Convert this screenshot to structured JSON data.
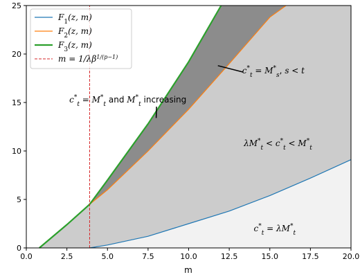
{
  "chart_data": {
    "type": "line",
    "xlabel": "m",
    "ylabel": "",
    "xlim": [
      0.0,
      20.0
    ],
    "ylim": [
      0,
      25
    ],
    "x_ticks": [
      "0.0",
      "2.5",
      "5.0",
      "7.5",
      "10.0",
      "12.5",
      "15.0",
      "17.5",
      "20.0"
    ],
    "y_ticks": [
      "0",
      "5",
      "10",
      "15",
      "20",
      "25"
    ],
    "grid": false,
    "legend_position": "top-left",
    "colors": {
      "F1": "#1f77b4",
      "F2": "#ff7f0e",
      "F3": "#2ca02c",
      "vline": "#d62728",
      "region_top": "#8c8c8c",
      "region_mid": "#cccccc",
      "region_low": "#f2f2f2"
    },
    "series": [
      {
        "name": "F₁(z, m)",
        "x": [
          3.9,
          5,
          7.5,
          10,
          12.5,
          15,
          17.5,
          20
        ],
        "values": [
          0.0,
          0.3,
          1.2,
          2.5,
          3.8,
          5.4,
          7.2,
          9.1
        ]
      },
      {
        "name": "F₂(z, m)",
        "x": [
          3.9,
          5,
          7.5,
          10,
          12.5,
          15,
          16.0
        ],
        "values": [
          4.5,
          6.0,
          10.0,
          14.3,
          19.0,
          23.8,
          25.0
        ]
      },
      {
        "name": "F₃(z, m)",
        "x": [
          0.8,
          2.5,
          3.9,
          5,
          7.5,
          10,
          12.0
        ],
        "values": [
          0.0,
          2.4,
          4.5,
          7.0,
          12.8,
          19.2,
          25.0
        ]
      }
    ],
    "vline": {
      "name": "m = 1/λβ^{1/(p−1)}",
      "x": 3.9
    },
    "annotations": [
      {
        "label": "c*t = M*t and M*t increasing",
        "x": 6.4,
        "y": 15.0
      },
      {
        "label": "c*t = M*s ,  s < t",
        "x": 14.7,
        "y": 18.0
      },
      {
        "label": "λM*t < c*t < M*t",
        "x": 15.5,
        "y": 10.5
      },
      {
        "label": "c*t = λM*t",
        "x": 15.3,
        "y": 1.7
      }
    ]
  }
}
